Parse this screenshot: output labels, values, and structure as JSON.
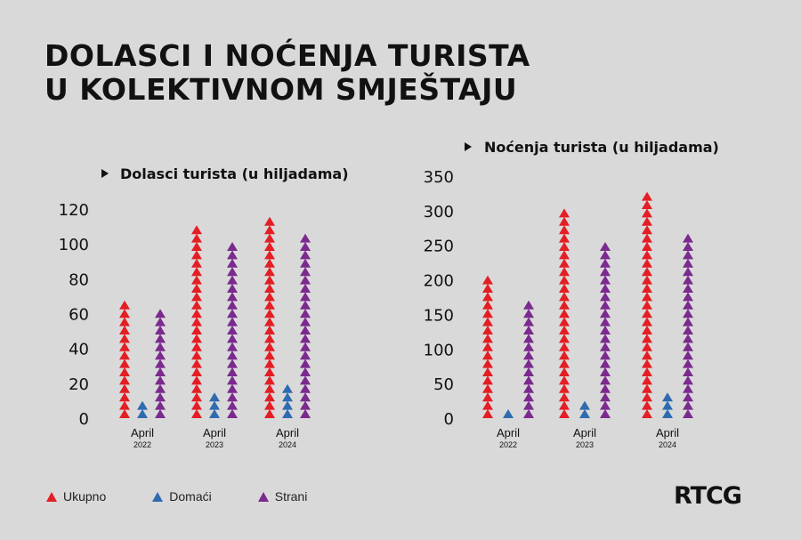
{
  "title_line1": "DOLASCI I NOĆENJA TURISTA",
  "title_line2": "U KOLEKTIVNOM SMJEŠTAJU",
  "legend": [
    {
      "label": "Ukupno",
      "color": "#e31e24"
    },
    {
      "label": "Domaći",
      "color": "#2e6bb0"
    },
    {
      "label": "Strani",
      "color": "#7b2a8e"
    }
  ],
  "logo": "RTCG",
  "chart_data": [
    {
      "type": "bar",
      "title": "Dolasci turista (u hiljadama)",
      "categories": [
        "April",
        "April",
        "April"
      ],
      "category_years": [
        "2022",
        "2023",
        "2024"
      ],
      "series": [
        {
          "name": "Ukupno",
          "values": [
            68,
            110,
            115
          ],
          "color": "#e31e24"
        },
        {
          "name": "Domaći",
          "values": [
            10,
            15,
            20
          ],
          "color": "#2e6bb0"
        },
        {
          "name": "Strani",
          "values": [
            63,
            101,
            105
          ],
          "color": "#7b2a8e"
        }
      ],
      "ylim": [
        0,
        120
      ],
      "yticks": [
        "0",
        "20",
        "40",
        "60",
        "80",
        "100",
        "120"
      ],
      "grid": false
    },
    {
      "type": "bar",
      "title": "Noćenja turista (u hiljadama)",
      "categories": [
        "April",
        "April",
        "April"
      ],
      "category_years": [
        "2022",
        "2023",
        "2024"
      ],
      "series": [
        {
          "name": "Ukupno",
          "values": [
            205,
            297,
            325
          ],
          "color": "#e31e24"
        },
        {
          "name": "Domaći",
          "values": [
            10,
            25,
            35
          ],
          "color": "#2e6bb0"
        },
        {
          "name": "Strani",
          "values": [
            168,
            252,
            262
          ],
          "color": "#7b2a8e"
        }
      ],
      "ylim": [
        0,
        350
      ],
      "yticks": [
        "0",
        "50",
        "100",
        "150",
        "200",
        "250",
        "300",
        "350"
      ],
      "grid": false
    }
  ]
}
